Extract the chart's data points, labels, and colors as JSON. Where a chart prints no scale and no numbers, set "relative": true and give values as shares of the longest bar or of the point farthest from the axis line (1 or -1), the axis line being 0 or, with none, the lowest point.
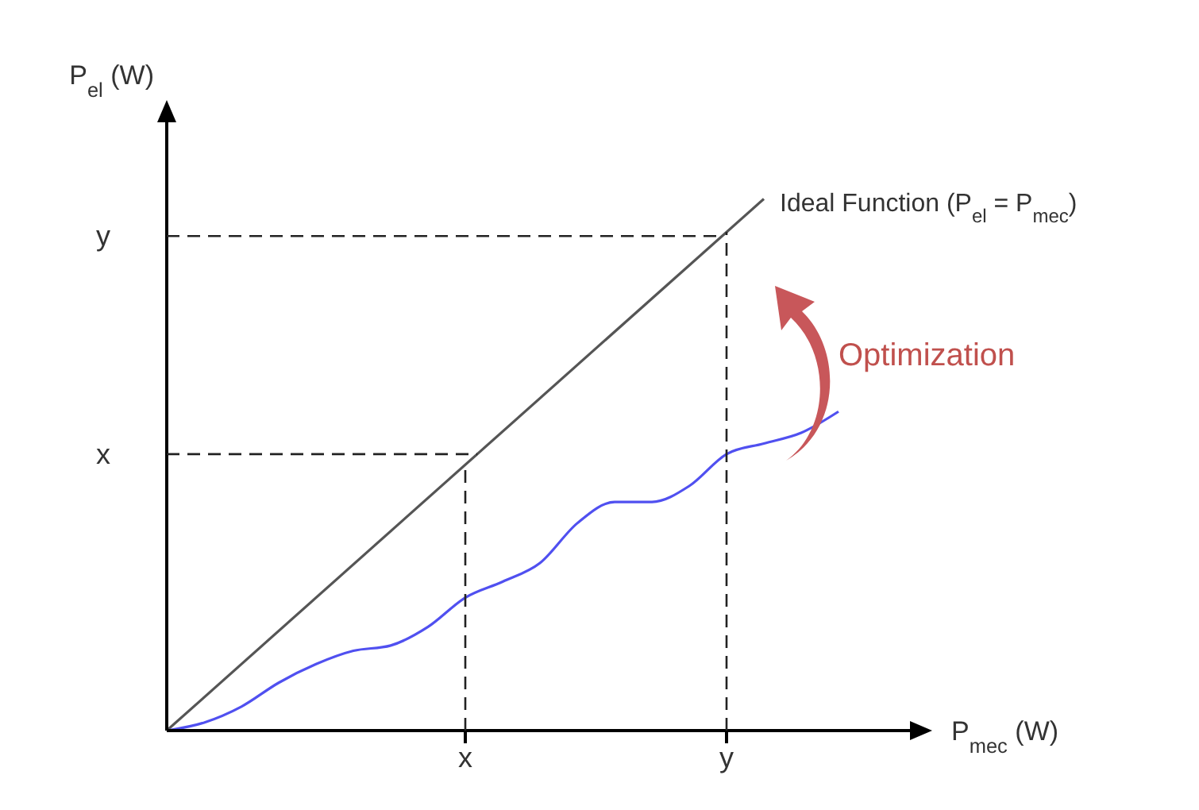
{
  "chart_data": {
    "type": "line",
    "relative": true,
    "xlabel": "P$_{mec}$ (W)",
    "ylabel": "P$_{el}$ (W)",
    "categories": [
      null,
      null,
      null,
      null,
      null,
      null,
      null,
      null,
      "x",
      null,
      null,
      null,
      null,
      null,
      null,
      "y",
      null,
      null,
      null,
      null,
      null
    ],
    "grid": false,
    "legend": false,
    "marker": "none",
    "line_style": "solid",
    "annotations": [
      "Optimization"
    ],
    "ref_lines": [
      {
        "axis": "y",
        "value": 0.52,
        "label": "x",
        "color": "#222222",
        "line_style": "dashed"
      },
      {
        "axis": "y",
        "value": 0.93,
        "label": "y",
        "color": "#222222",
        "line_style": "dashed"
      },
      {
        "axis": "x",
        "value": "x",
        "color": "#222222",
        "line_style": "dashed"
      },
      {
        "axis": "x",
        "value": "y",
        "color": "#222222",
        "line_style": "dashed"
      }
    ],
    "series": [
      {
        "name": "Ideal Function (P$_{el}$ = P$_{mec}$)",
        "color": "#555555",
        "values": [
          0,
          null,
          null,
          null,
          null,
          null,
          null,
          null,
          null,
          null,
          null,
          null,
          null,
          null,
          null,
          null,
          1,
          null,
          null,
          null,
          null
        ]
      },
      {
        "color": "#5050f0",
        "values": [
          0,
          0.015,
          0.045,
          0.09,
          0.125,
          0.15,
          0.16,
          0.195,
          0.25,
          0.28,
          0.315,
          0.39,
          0.43,
          0.43,
          0.46,
          0.52,
          0.54,
          0.56,
          0.6,
          null,
          null
        ]
      }
    ]
  }
}
